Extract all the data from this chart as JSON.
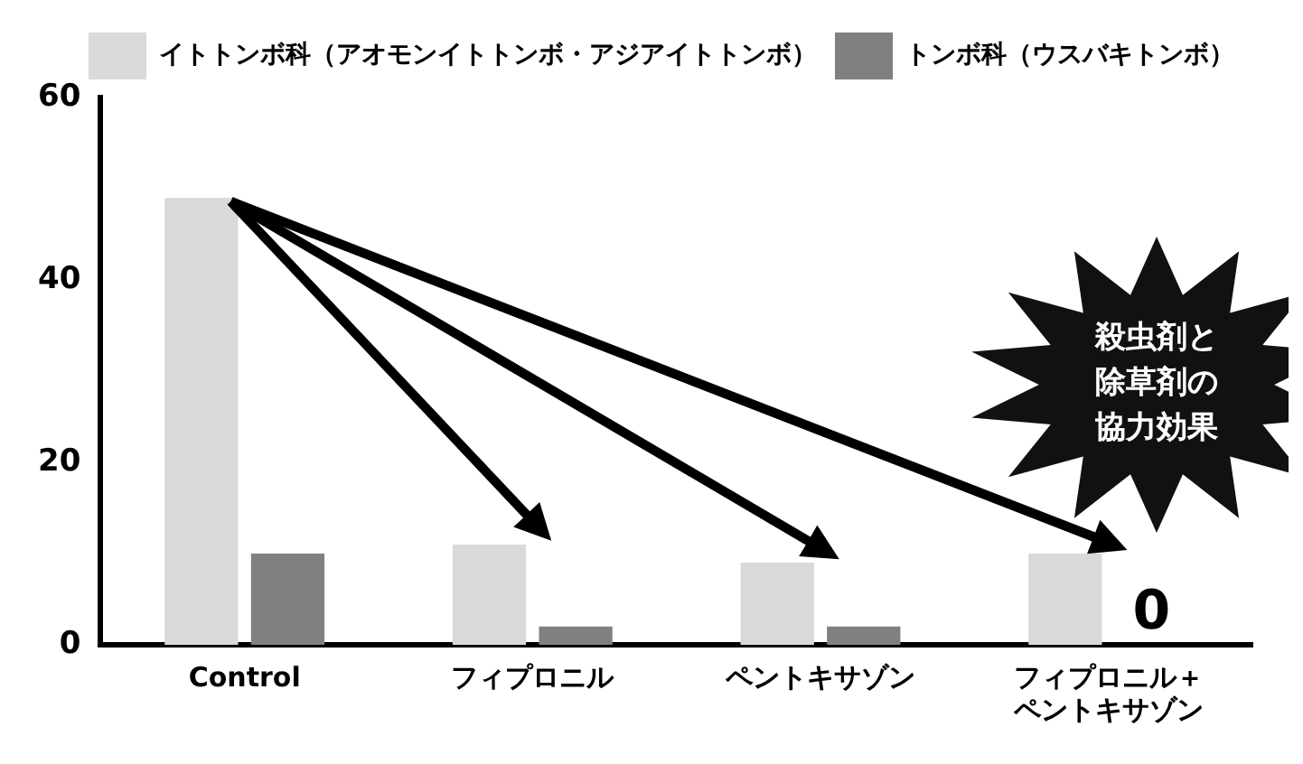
{
  "chart_data": {
    "type": "bar",
    "categories": [
      "Control",
      "フィプロニル",
      "ペントキサゾン",
      "フィプロニル＋ペントキサゾン"
    ],
    "series": [
      {
        "name": "イトトンボ科（アオモンイトトンボ・アジアイトトンボ）",
        "color": "#d9d9d9",
        "values": [
          49,
          11,
          9,
          10
        ]
      },
      {
        "name": "トンボ科（ウスバキトンボ）",
        "color": "#808080",
        "values": [
          10,
          2,
          2,
          0
        ],
        "value_labels": [
          null,
          null,
          null,
          "0"
        ]
      }
    ],
    "ylim": [
      0,
      60
    ],
    "yticks": [
      0,
      20,
      40,
      60
    ],
    "grid": false,
    "legend": "top right",
    "annotations": [
      "殺虫剤と除草剤の協力効果"
    ]
  }
}
